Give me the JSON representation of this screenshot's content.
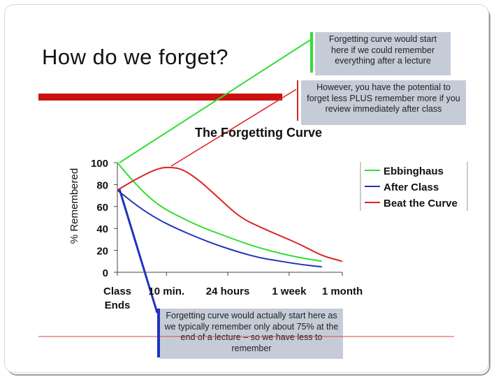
{
  "slide": {
    "title": "How do we forget?"
  },
  "callouts": {
    "top": "Forgetting curve would start here if we could remember everything after a lecture",
    "middle": "However, you have the potential to forget less PLUS remember more if you review immediately after class",
    "bottom": "Forgetting curve would actually start here as we typically remember only about 75% at the end of a lecture – so we have less to remember"
  },
  "colors": {
    "ebbinghaus": "#33dd33",
    "after_class": "#2233bb",
    "beat_the_curve": "#dd2222",
    "callout_bg": "#c5ccd8",
    "accent_bar": "#cc1111"
  },
  "chart_data": {
    "type": "line",
    "title": "The Forgetting Curve",
    "ylabel": "% Remembered",
    "xlabel": "",
    "ylim": [
      0,
      100
    ],
    "y_ticks": [
      0,
      20,
      40,
      60,
      80,
      100
    ],
    "x_ticks": [
      "Class Ends",
      "10 min.",
      "24 hours",
      "1 week",
      "1 month"
    ],
    "legend_position": "top-right",
    "grid": false,
    "series": [
      {
        "name": "Ebbinghaus",
        "color": "#33dd33",
        "points": [
          [
            0,
            100
          ],
          [
            0.5,
            78
          ],
          [
            1,
            61
          ],
          [
            1.5,
            51
          ],
          [
            2,
            42
          ],
          [
            2.5,
            35
          ],
          [
            3,
            28
          ],
          [
            3.5,
            22
          ],
          [
            4,
            17
          ],
          [
            4.5,
            13
          ],
          [
            5,
            10
          ]
        ]
      },
      {
        "name": "After Class",
        "color": "#2233bb",
        "points": [
          [
            0,
            75
          ],
          [
            0.5,
            60
          ],
          [
            1,
            48
          ],
          [
            1.5,
            39
          ],
          [
            2,
            31
          ],
          [
            2.5,
            24
          ],
          [
            3,
            18
          ],
          [
            3.5,
            13
          ],
          [
            4,
            10
          ],
          [
            4.5,
            7
          ],
          [
            5,
            5
          ]
        ]
      },
      {
        "name": "Beat the Curve",
        "color": "#dd2222",
        "points": [
          [
            0,
            75
          ],
          [
            0.5,
            86
          ],
          [
            1,
            95
          ],
          [
            1.3,
            96
          ],
          [
            1.6,
            94
          ],
          [
            2,
            84
          ],
          [
            2.5,
            67
          ],
          [
            3,
            50
          ],
          [
            3.5,
            41
          ],
          [
            4,
            33
          ],
          [
            4.5,
            25
          ],
          [
            5,
            15
          ],
          [
            5.5,
            10
          ]
        ]
      }
    ]
  }
}
